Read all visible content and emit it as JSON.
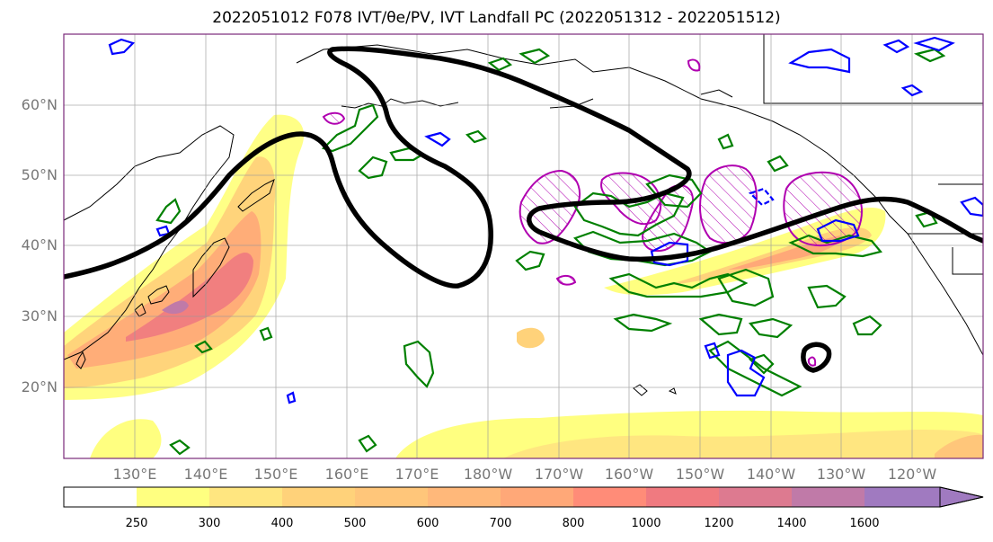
{
  "title_text": "2022051012 F078 IVT/θe/PV, IVT Landfall PC (2022051312 - 2022051512)",
  "map": {
    "lat_labels": [
      "60°N",
      "50°N",
      "40°N",
      "30°N",
      "20°N"
    ],
    "lon_labels": [
      "130°E",
      "140°E",
      "150°E",
      "160°E",
      "170°E",
      "180°W",
      "170°W",
      "160°W",
      "150°W",
      "140°W",
      "130°W",
      "120°W"
    ],
    "gridlines": true,
    "frame_color": "#7a2a7a"
  },
  "colorbar": {
    "tick_labels": [
      "250",
      "300",
      "400",
      "500",
      "600",
      "700",
      "800",
      "1000",
      "1200",
      "1400",
      "1600"
    ],
    "colors": [
      "#ffffff",
      "#ffff80",
      "#ffe680",
      "#ffd27a",
      "#ffc67a",
      "#ffb87a",
      "#ffa878",
      "#ff8c78",
      "#f07a80",
      "#dd7a90",
      "#c07aa8",
      "#a07ac0"
    ],
    "extend": "max"
  },
  "legend_colors": {
    "ivt_landfall_pc": "#000000",
    "theta_e": "#008000",
    "pv_negative": "#0000ff",
    "pv_positive": "#b000b0"
  }
}
